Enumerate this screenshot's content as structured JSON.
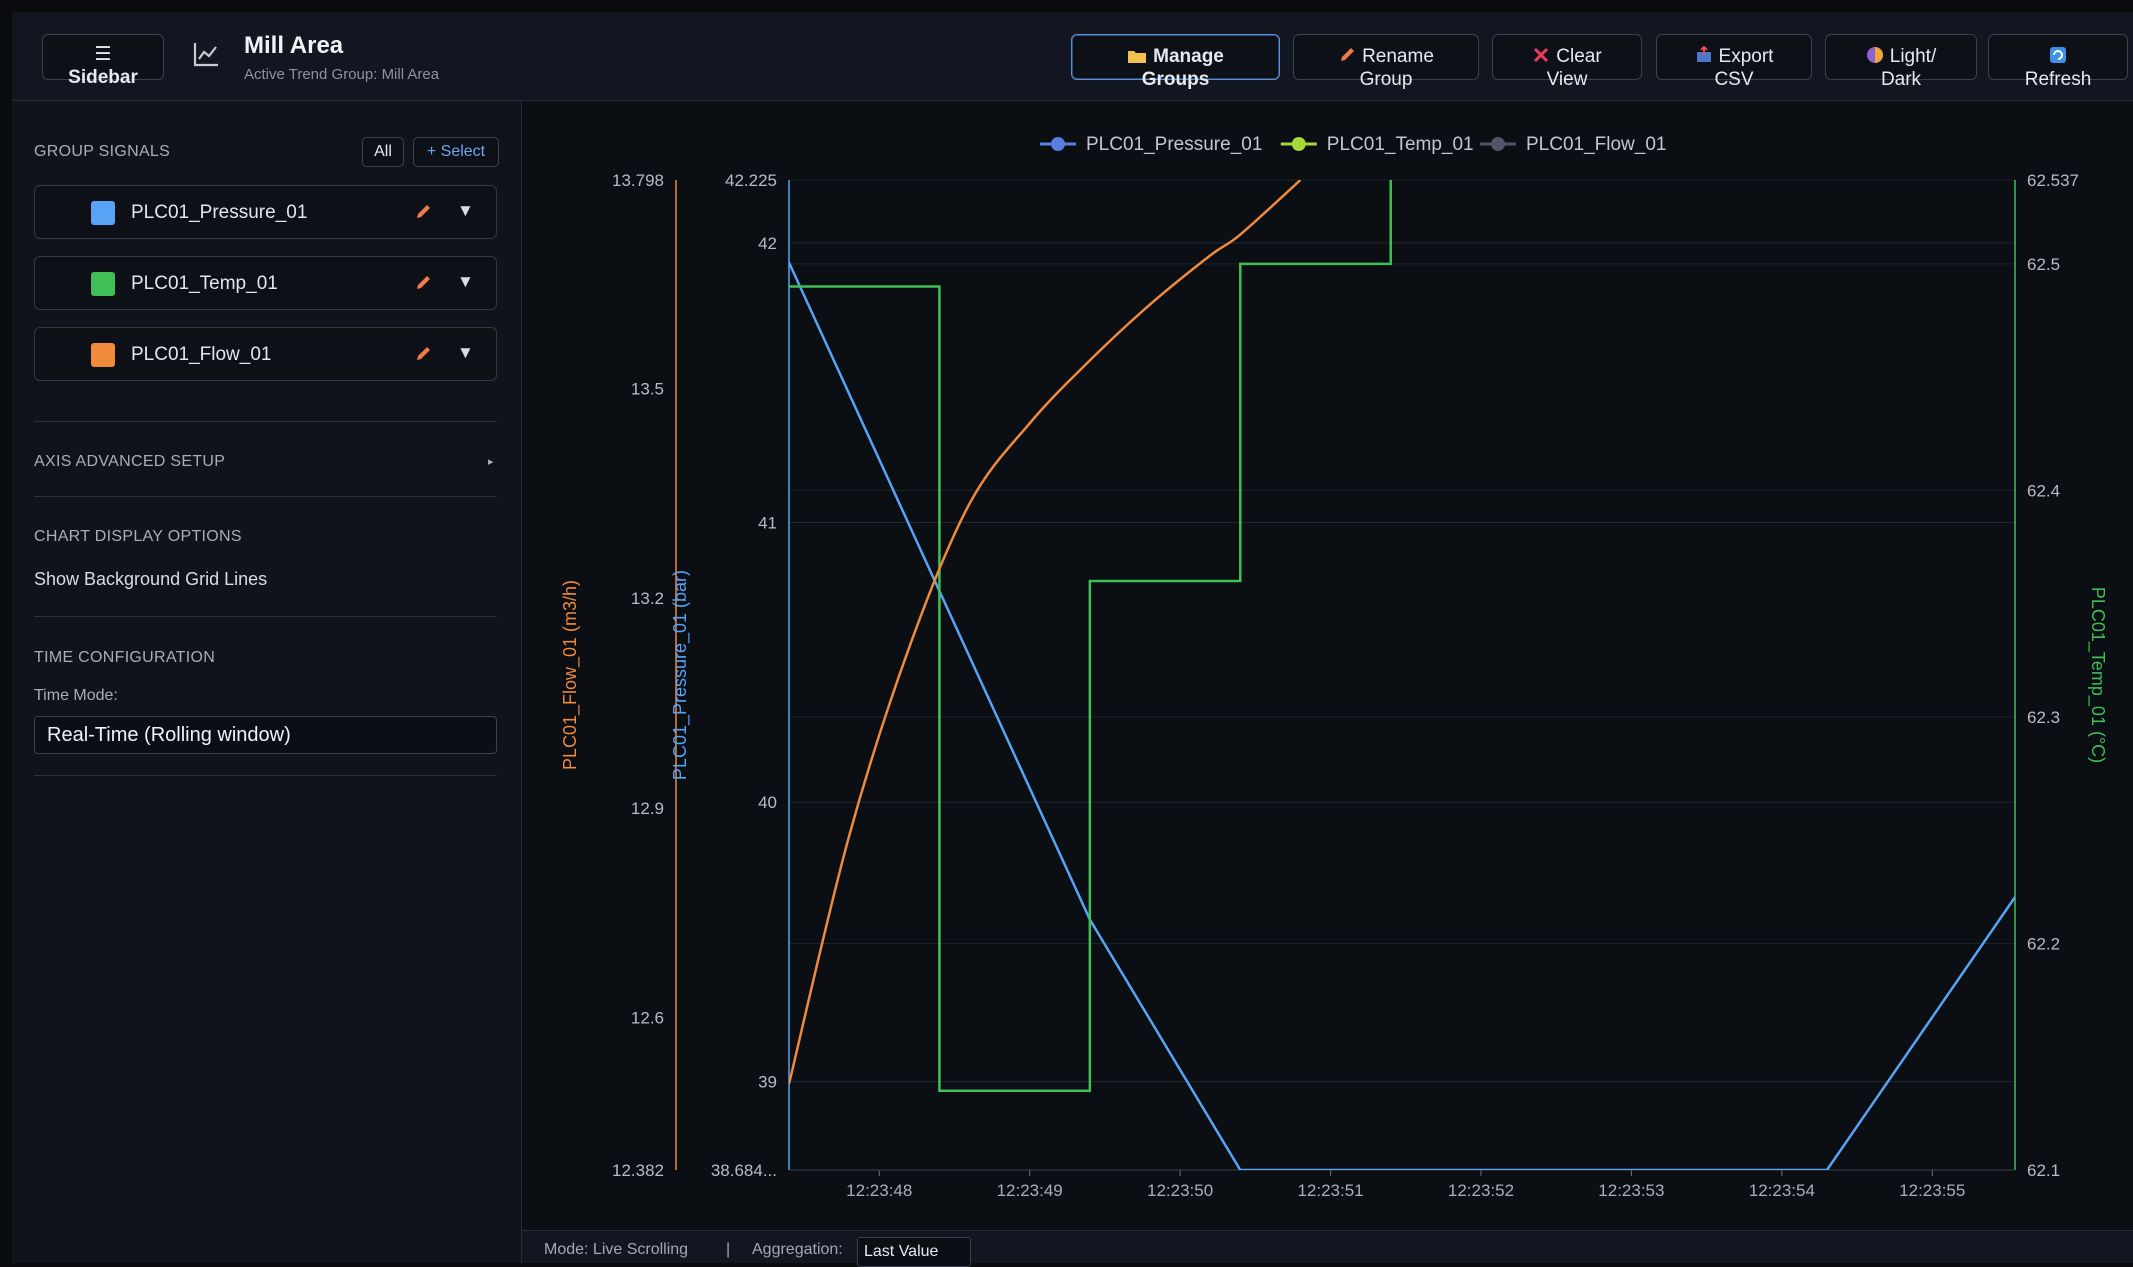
{
  "header": {
    "sidebar_btn": {
      "icon": "☰",
      "label": "Sidebar"
    },
    "title": "Mill Area",
    "subtitle": "Active Trend Group: Mill Area",
    "buttons": [
      {
        "l1": "Manage",
        "l2": "Groups",
        "icon": "folder-icon"
      },
      {
        "l1": "Rename",
        "l2": "Group",
        "icon": "pencil-icon"
      },
      {
        "l1": "Clear",
        "l2": "View",
        "icon": "close-icon"
      },
      {
        "l1": "Export",
        "l2": "CSV",
        "icon": "export-icon"
      },
      {
        "l1": "Light/",
        "l2": "Dark",
        "icon": "theme-icon"
      },
      {
        "l1": "",
        "l2": "Refresh",
        "icon": "refresh-icon"
      }
    ]
  },
  "sidebar": {
    "group_signals_title": "GROUP SIGNALS",
    "all_btn": "All",
    "select_btn": "+ Select",
    "signals": [
      {
        "name": "PLC01_Pressure_01",
        "color": "#58a3f5"
      },
      {
        "name": "PLC01_Temp_01",
        "color": "#3fbf55"
      },
      {
        "name": "PLC01_Flow_01",
        "color": "#f08a3c"
      }
    ],
    "axis_advanced": "AXIS ADVANCED SETUP",
    "axis_caret": "▸",
    "chart_display": "CHART DISPLAY OPTIONS",
    "show_grid": "Show Background Grid Lines",
    "time_config": "TIME CONFIGURATION",
    "time_mode_label": "Time Mode:",
    "time_mode_value": "Real-Time (Rolling window)"
  },
  "status": {
    "mode": "Mode: Live Scrolling",
    "sep": "|",
    "aggregation_label": "Aggregation:",
    "aggregation_value": "Last Value"
  },
  "chart_data": {
    "type": "line",
    "legend": [
      "PLC01_Pressure_01",
      "PLC01_Temp_01",
      "PLC01_Flow_01"
    ],
    "legend_colors": [
      "#5b7fe0",
      "#a7d93c",
      "#4e5566"
    ],
    "x_ticks": [
      "12:23:48",
      "12:23:49",
      "12:23:50",
      "12:23:51",
      "12:23:52",
      "12:23:53",
      "12:23:54",
      "12:23:55"
    ],
    "x_range_seconds": [
      47.4,
      55.55
    ],
    "axes": {
      "flow": {
        "label": "PLC01_Flow_01 (m3/h)",
        "color": "#f08a3c",
        "min": 12.382,
        "max": 13.798,
        "ticks": [
          "13.798",
          "13.5",
          "13.2",
          "12.9",
          "12.6",
          "12.382"
        ],
        "tick_values": [
          13.798,
          13.5,
          13.2,
          12.9,
          12.6,
          12.382
        ]
      },
      "pressure": {
        "label": "PLC01_Pressure_01 (bar)",
        "color": "#58a3f5",
        "min": 38.684,
        "max": 42.225,
        "ticks": [
          "42.225",
          "42",
          "41",
          "40",
          "39",
          "38.684..."
        ],
        "tick_values": [
          42.225,
          42,
          41,
          40,
          39,
          38.684
        ]
      },
      "temp": {
        "label": "PLC01_Temp_01 (°C)",
        "color": "#3fbf55",
        "min": 62.1,
        "max": 62.537,
        "ticks": [
          "62.537",
          "62.5",
          "62.4",
          "62.3",
          "62.2",
          "62.1"
        ],
        "tick_values": [
          62.537,
          62.5,
          62.4,
          62.3,
          62.2,
          62.1
        ]
      }
    },
    "series": [
      {
        "name": "PLC01_Pressure_01",
        "axis": "pressure",
        "color": "#58a3f5",
        "shape": "linear",
        "points": [
          [
            47.4,
            41.93
          ],
          [
            49.4,
            39.58
          ],
          [
            50.4,
            38.684
          ],
          [
            54.3,
            38.684
          ],
          [
            55.55,
            39.66
          ]
        ]
      },
      {
        "name": "PLC01_Temp_01",
        "axis": "temp",
        "color": "#3fbf55",
        "shape": "step",
        "points": [
          [
            47.4,
            62.49
          ],
          [
            48.4,
            62.135
          ],
          [
            49.4,
            62.36
          ],
          [
            50.4,
            62.5
          ],
          [
            51.4,
            62.537
          ]
        ]
      },
      {
        "name": "PLC01_Flow_01",
        "axis": "flow",
        "color": "#f08a3c",
        "shape": "smooth",
        "points": [
          [
            47.4,
            12.505
          ],
          [
            47.8,
            12.86
          ],
          [
            48.2,
            13.13
          ],
          [
            48.6,
            13.335
          ],
          [
            49.0,
            13.45
          ],
          [
            49.4,
            13.54
          ],
          [
            49.8,
            13.62
          ],
          [
            50.2,
            13.69
          ],
          [
            50.4,
            13.72
          ],
          [
            50.8,
            13.798
          ]
        ]
      }
    ]
  }
}
